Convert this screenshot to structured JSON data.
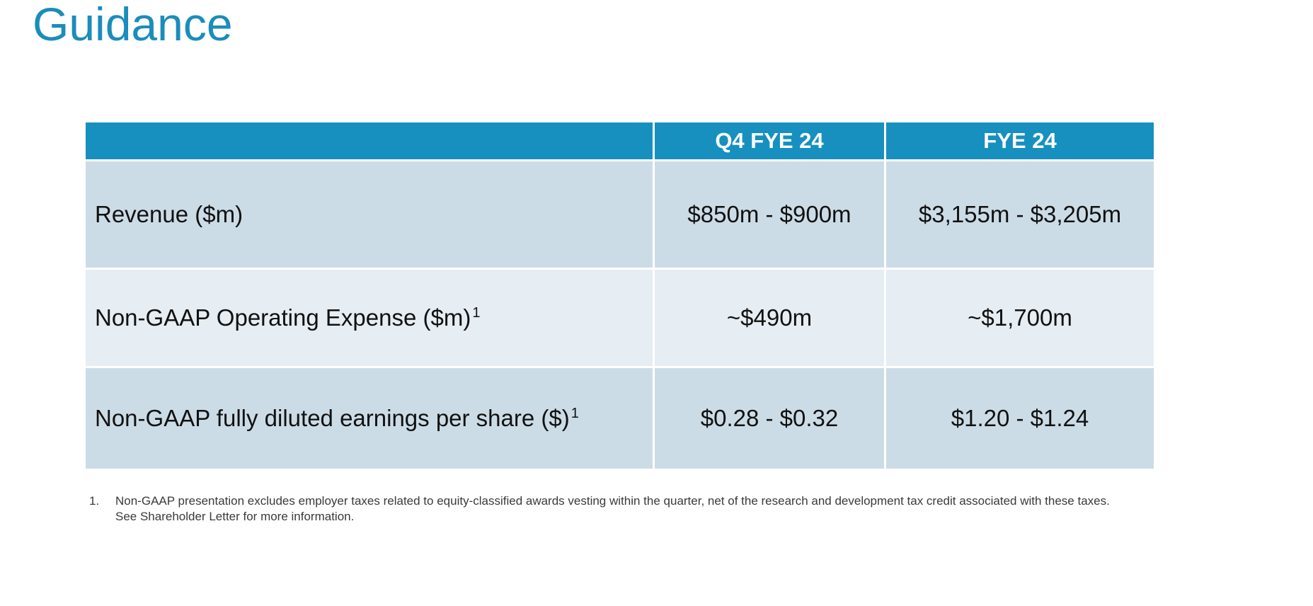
{
  "page_title": "Guidance",
  "table": {
    "header": {
      "label": "",
      "q4": "Q4 FYE 24",
      "fy": "FYE 24"
    },
    "rows": [
      {
        "label": "Revenue ($m)",
        "footnote_marker": "",
        "q4": "$850m - $900m",
        "fy": "$3,155m - $3,205m"
      },
      {
        "label": "Non-GAAP Operating Expense ($m)",
        "footnote_marker": "1",
        "q4": "~$490m",
        "fy": "~$1,700m"
      },
      {
        "label": "Non-GAAP fully diluted earnings per share ($)",
        "footnote_marker": "1",
        "q4": "$0.28 - $0.32",
        "fy": "$1.20 - $1.24"
      }
    ]
  },
  "footnote": {
    "number": "1.",
    "line1": "Non-GAAP presentation excludes employer taxes related to equity-classified awards vesting within the quarter, net of the research and development tax credit associated with these taxes.",
    "line2": "See Shareholder Letter for more information."
  },
  "colors": {
    "title": "#1a8dbb",
    "header_bg": "#1790c0",
    "row_dark": "#ccdce7",
    "row_light": "#e6edf3"
  }
}
